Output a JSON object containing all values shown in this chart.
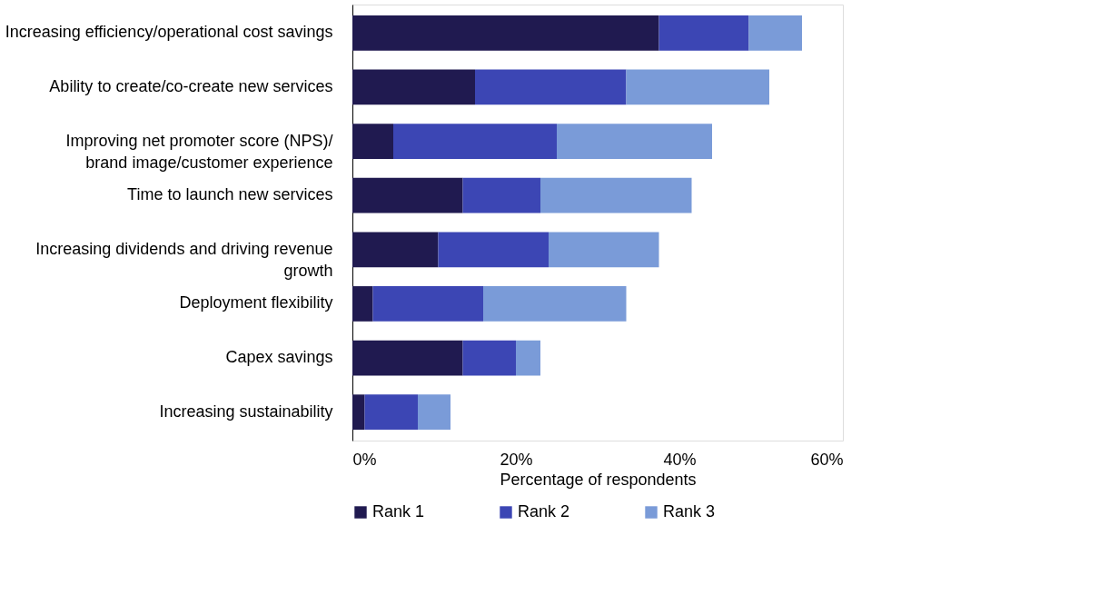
{
  "chart_data": {
    "type": "bar",
    "orientation": "horizontal",
    "stacked": true,
    "categories": [
      "Increasing efficiency/operational cost savings",
      "Ability to create/co-create new services",
      "Improving net promoter score (NPS)/\nbrand image/customer experience",
      "Time to launch new services",
      "Increasing dividends and driving revenue\ngrowth",
      "Deployment flexibility",
      "Capex savings",
      "Increasing sustainability"
    ],
    "series": [
      {
        "name": "Rank 1",
        "color": "#201a50",
        "values": [
          37.5,
          15,
          5,
          13.5,
          10.5,
          2.5,
          13.5,
          1.5
        ]
      },
      {
        "name": "Rank 2",
        "color": "#3c46b4",
        "values": [
          11,
          18.5,
          20,
          9.5,
          13.5,
          13.5,
          6.5,
          6.5
        ]
      },
      {
        "name": "Rank 3",
        "color": "#7a9bd8",
        "values": [
          6.5,
          17.5,
          19,
          18.5,
          13.5,
          17.5,
          3,
          4
        ]
      }
    ],
    "xlim": [
      0,
      60
    ],
    "xticks": [
      {
        "value": 0,
        "label": "0%"
      },
      {
        "value": 20,
        "label": "20%"
      },
      {
        "value": 40,
        "label": "40%"
      },
      {
        "value": 60,
        "label": "60%"
      }
    ],
    "xlabel": "Percentage of respondents",
    "grid": false,
    "legend": "bottom"
  }
}
